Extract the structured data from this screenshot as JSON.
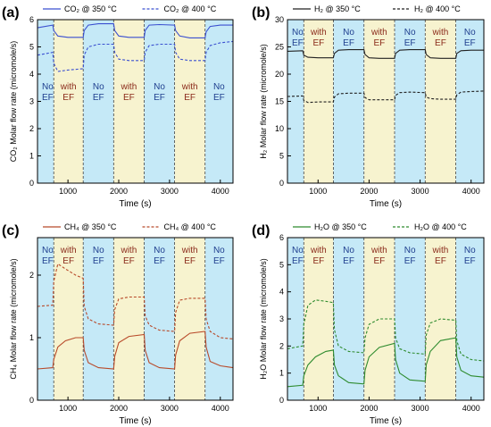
{
  "panel_labels": [
    "(a)",
    "(b)",
    "(c)",
    "(d)"
  ],
  "colors": {
    "no_ef_band": "#c5e9f7",
    "with_ef_band": "#f7f3cf",
    "band_text_no": "#1f3f8f",
    "band_text_with": "#8a2a1a",
    "co2": "#3a4fd0",
    "h2": "#222222",
    "ch4": "#b84a2a",
    "h2o": "#2e8b2e"
  },
  "band_labels": {
    "no_ef": [
      "No",
      "EF"
    ],
    "with_ef": [
      "with",
      "EF"
    ]
  },
  "chart_data": [
    {
      "type": "line",
      "panel": "(a)",
      "xlabel": "Time (s)",
      "ylabel": "CO₂ Molar flow rate (micromole/s)",
      "xlim": [
        400,
        4250
      ],
      "ylim": [
        0,
        6
      ],
      "xticks": [
        1000,
        2000,
        3000,
        4000
      ],
      "yticks": [
        0,
        1,
        2,
        3,
        4,
        5,
        6
      ],
      "ef_bands": [
        {
          "start": 400,
          "end": 720,
          "ef": false
        },
        {
          "start": 720,
          "end": 1300,
          "ef": true
        },
        {
          "start": 1300,
          "end": 1900,
          "ef": false
        },
        {
          "start": 1900,
          "end": 2500,
          "ef": true
        },
        {
          "start": 2500,
          "end": 3100,
          "ef": false
        },
        {
          "start": 3100,
          "end": 3700,
          "ef": true
        },
        {
          "start": 3700,
          "end": 4250,
          "ef": false
        }
      ],
      "legend": "top",
      "series": [
        {
          "name": "CO₂ @ 350 °C",
          "style": "solid",
          "x": [
            400,
            700,
            720,
            800,
            1000,
            1300,
            1320,
            1400,
            1600,
            1900,
            1920,
            2000,
            2200,
            2500,
            2520,
            2600,
            2800,
            3100,
            3120,
            3200,
            3400,
            3700,
            3720,
            3800,
            4000,
            4250
          ],
          "y": [
            5.7,
            5.8,
            5.6,
            5.4,
            5.35,
            5.35,
            5.6,
            5.8,
            5.85,
            5.85,
            5.6,
            5.4,
            5.35,
            5.35,
            5.6,
            5.8,
            5.82,
            5.8,
            5.6,
            5.4,
            5.33,
            5.33,
            5.55,
            5.75,
            5.8,
            5.8
          ]
        },
        {
          "name": "CO₂ @ 400 °C",
          "style": "dashed",
          "x": [
            400,
            700,
            720,
            800,
            1000,
            1300,
            1320,
            1400,
            1600,
            1900,
            1920,
            2000,
            2200,
            2500,
            2520,
            2600,
            2800,
            3100,
            3120,
            3200,
            3400,
            3700,
            3720,
            3800,
            4000,
            4250
          ],
          "y": [
            4.7,
            4.8,
            4.4,
            4.1,
            4.15,
            4.2,
            4.7,
            5.0,
            5.1,
            5.1,
            4.8,
            4.55,
            4.5,
            4.5,
            4.8,
            5.05,
            5.1,
            5.1,
            4.8,
            4.55,
            4.5,
            4.5,
            4.8,
            5.05,
            5.15,
            5.2
          ]
        }
      ]
    },
    {
      "type": "line",
      "panel": "(b)",
      "xlabel": "Time (s)",
      "ylabel": "H₂ Molar flow rate (micromole/s)",
      "xlim": [
        400,
        4250
      ],
      "ylim": [
        0,
        30
      ],
      "xticks": [
        1000,
        2000,
        3000,
        4000
      ],
      "yticks": [
        0,
        5,
        10,
        15,
        20,
        25,
        30
      ],
      "ef_bands": [
        {
          "start": 400,
          "end": 720,
          "ef": false
        },
        {
          "start": 720,
          "end": 1300,
          "ef": true
        },
        {
          "start": 1300,
          "end": 1900,
          "ef": false
        },
        {
          "start": 1900,
          "end": 2500,
          "ef": true
        },
        {
          "start": 2500,
          "end": 3100,
          "ef": false
        },
        {
          "start": 3100,
          "end": 3700,
          "ef": true
        },
        {
          "start": 3700,
          "end": 4250,
          "ef": false
        }
      ],
      "legend": "top",
      "series": [
        {
          "name": "H₂ @ 350 °C",
          "style": "solid",
          "x": [
            400,
            700,
            720,
            800,
            1000,
            1300,
            1320,
            1400,
            1600,
            1900,
            1920,
            2000,
            2200,
            2500,
            2520,
            2600,
            2800,
            3100,
            3120,
            3200,
            3400,
            3700,
            3720,
            3800,
            4000,
            4250
          ],
          "y": [
            24.2,
            24.3,
            23.5,
            23.1,
            23.0,
            23.0,
            23.8,
            24.4,
            24.5,
            24.5,
            23.6,
            23.0,
            22.9,
            22.9,
            23.8,
            24.4,
            24.5,
            24.5,
            23.6,
            23.0,
            22.9,
            22.9,
            23.8,
            24.3,
            24.4,
            24.4
          ]
        },
        {
          "name": "H₂ @ 400 °C",
          "style": "dashed",
          "x": [
            400,
            700,
            720,
            800,
            1000,
            1300,
            1320,
            1400,
            1600,
            1900,
            1920,
            2000,
            2200,
            2500,
            2520,
            2600,
            2800,
            3100,
            3120,
            3200,
            3400,
            3700,
            3720,
            3800,
            4000,
            4250
          ],
          "y": [
            15.9,
            16.0,
            15.2,
            14.8,
            14.9,
            14.9,
            15.8,
            16.4,
            16.5,
            16.5,
            15.7,
            15.3,
            15.3,
            15.3,
            16.1,
            16.6,
            16.7,
            16.6,
            15.8,
            15.5,
            15.4,
            15.4,
            16.2,
            16.7,
            16.8,
            16.9
          ]
        }
      ]
    },
    {
      "type": "line",
      "panel": "(c)",
      "xlabel": "Time (s)",
      "ylabel": "CH₄ Molar flow rate (micromole/s)",
      "xlim": [
        400,
        4250
      ],
      "ylim": [
        0,
        2.6
      ],
      "xticks": [
        1000,
        2000,
        3000,
        4000
      ],
      "yticks": [
        0,
        1,
        2
      ],
      "ef_bands": [
        {
          "start": 400,
          "end": 720,
          "ef": false
        },
        {
          "start": 720,
          "end": 1300,
          "ef": true
        },
        {
          "start": 1300,
          "end": 1900,
          "ef": false
        },
        {
          "start": 1900,
          "end": 2500,
          "ef": true
        },
        {
          "start": 2500,
          "end": 3100,
          "ef": false
        },
        {
          "start": 3100,
          "end": 3700,
          "ef": true
        },
        {
          "start": 3700,
          "end": 4250,
          "ef": false
        }
      ],
      "legend": "top",
      "series": [
        {
          "name": "CH₄ @ 350 °C",
          "style": "solid",
          "x": [
            400,
            700,
            720,
            800,
            950,
            1150,
            1300,
            1320,
            1400,
            1600,
            1900,
            1920,
            2000,
            2200,
            2500,
            2520,
            2600,
            2800,
            3100,
            3120,
            3200,
            3400,
            3700,
            3720,
            3800,
            4000,
            4250
          ],
          "y": [
            0.5,
            0.52,
            0.65,
            0.85,
            0.95,
            1.0,
            1.0,
            0.8,
            0.6,
            0.52,
            0.5,
            0.7,
            0.92,
            1.02,
            1.05,
            0.8,
            0.6,
            0.52,
            0.5,
            0.72,
            0.95,
            1.07,
            1.1,
            0.85,
            0.62,
            0.55,
            0.52
          ]
        },
        {
          "name": "CH₄ @ 400 °C",
          "style": "dashed",
          "x": [
            400,
            700,
            720,
            800,
            950,
            1150,
            1300,
            1320,
            1400,
            1600,
            1900,
            1920,
            2000,
            2200,
            2500,
            2520,
            2600,
            2800,
            3100,
            3120,
            3200,
            3400,
            3700,
            3720,
            3800,
            4000,
            4250
          ],
          "y": [
            1.5,
            1.52,
            1.9,
            2.18,
            2.1,
            2.0,
            1.95,
            1.5,
            1.3,
            1.22,
            1.2,
            1.45,
            1.62,
            1.65,
            1.65,
            1.35,
            1.2,
            1.12,
            1.1,
            1.4,
            1.6,
            1.63,
            1.63,
            1.3,
            1.1,
            1.0,
            0.98
          ]
        }
      ]
    },
    {
      "type": "line",
      "panel": "(d)",
      "xlabel": "Time (s)",
      "ylabel": "H₂O Molar flow rate (micromole/s)",
      "xlim": [
        400,
        4250
      ],
      "ylim": [
        0,
        6
      ],
      "xticks": [
        1000,
        2000,
        3000,
        4000
      ],
      "yticks": [
        0,
        1,
        2,
        3,
        4,
        5,
        6
      ],
      "ef_bands": [
        {
          "start": 400,
          "end": 720,
          "ef": false
        },
        {
          "start": 720,
          "end": 1300,
          "ef": true
        },
        {
          "start": 1300,
          "end": 1900,
          "ef": false
        },
        {
          "start": 1900,
          "end": 2500,
          "ef": true
        },
        {
          "start": 2500,
          "end": 3100,
          "ef": false
        },
        {
          "start": 3100,
          "end": 3700,
          "ef": true
        },
        {
          "start": 3700,
          "end": 4250,
          "ef": false
        }
      ],
      "legend": "top",
      "series": [
        {
          "name": "H₂O @ 350 °C",
          "style": "solid",
          "x": [
            400,
            700,
            720,
            800,
            950,
            1150,
            1300,
            1320,
            1400,
            1600,
            1900,
            1920,
            2000,
            2200,
            2500,
            2520,
            2600,
            2800,
            3100,
            3120,
            3200,
            3400,
            3700,
            3720,
            3800,
            4000,
            4250
          ],
          "y": [
            0.5,
            0.55,
            0.9,
            1.3,
            1.6,
            1.8,
            1.85,
            1.3,
            0.9,
            0.65,
            0.6,
            1.1,
            1.6,
            1.95,
            2.1,
            1.5,
            1.0,
            0.75,
            0.7,
            1.3,
            1.8,
            2.2,
            2.3,
            1.6,
            1.1,
            0.9,
            0.85
          ]
        },
        {
          "name": "H₂O @ 400 °C",
          "style": "dashed",
          "x": [
            400,
            700,
            720,
            800,
            950,
            1150,
            1300,
            1320,
            1400,
            1600,
            1900,
            1920,
            2000,
            2200,
            2500,
            2520,
            2600,
            2800,
            3100,
            3120,
            3200,
            3400,
            3700,
            3720,
            3800,
            4000,
            4250
          ],
          "y": [
            1.9,
            2.0,
            2.8,
            3.5,
            3.7,
            3.65,
            3.6,
            2.6,
            2.0,
            1.8,
            1.75,
            2.3,
            2.8,
            3.0,
            3.0,
            2.3,
            1.9,
            1.75,
            1.7,
            2.4,
            2.85,
            3.0,
            2.95,
            2.2,
            1.7,
            1.5,
            1.45
          ]
        }
      ]
    }
  ]
}
